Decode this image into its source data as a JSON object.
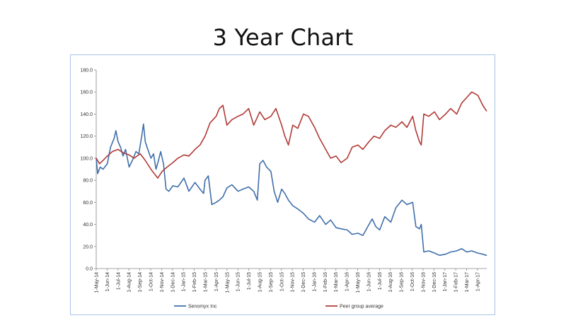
{
  "slide": {
    "title": "3 Year Chart"
  },
  "colors": {
    "series_1": "#3f6faa",
    "series_2": "#b03a36",
    "axis": "#888888",
    "frame": "#a9c4e6"
  },
  "chart_data": {
    "type": "line",
    "title": "",
    "xlabel": "",
    "ylabel": "",
    "ylim": [
      0,
      180
    ],
    "y_ticks": [
      "0.0",
      "20.0",
      "40.0",
      "60.0",
      "80.0",
      "100.0",
      "120.0",
      "140.0",
      "160.0",
      "180.0"
    ],
    "x_tick_labels": [
      "1-May-14",
      "1-Jun-14",
      "1-Jul-14",
      "1-Aug-14",
      "1-Sep-14",
      "1-Oct-14",
      "1-Nov-14",
      "1-Dec-14",
      "1-Jan-15",
      "1-Feb-15",
      "1-Mar-15",
      "1-Apr-15",
      "1-May-15",
      "1-Jun-15",
      "1-Jul-15",
      "1-Aug-15",
      "1-Sep-15",
      "1-Oct-15",
      "1-Nov-15",
      "1-Dec-15",
      "1-Jan-16",
      "1-Feb-16",
      "1-Mar-16",
      "1-Apr-16",
      "1-May-16",
      "1-Jun-16",
      "1-Jul-16",
      "1-Aug-16",
      "1-Sep-16",
      "1-Oct-16",
      "1-Nov-16",
      "1-Dec-16",
      "1-Jan-17",
      "1-Feb-17",
      "1-Mar-17",
      "1-Apr-17"
    ],
    "grid": false,
    "legend": "bottom",
    "series": [
      {
        "name": "Senomyx Inc",
        "color": "#3f6faa",
        "x": [
          "2014-05-01",
          "2014-05-05",
          "2014-05-12",
          "2014-05-20",
          "2014-06-01",
          "2014-06-10",
          "2014-06-20",
          "2014-06-25",
          "2014-07-01",
          "2014-07-08",
          "2014-07-15",
          "2014-07-22",
          "2014-08-01",
          "2014-08-10",
          "2014-08-20",
          "2014-08-28",
          "2014-09-05",
          "2014-09-10",
          "2014-09-15",
          "2014-09-22",
          "2014-10-01",
          "2014-10-08",
          "2014-10-15",
          "2014-10-22",
          "2014-10-28",
          "2014-11-05",
          "2014-11-12",
          "2014-11-20",
          "2014-12-01",
          "2014-12-15",
          "2015-01-01",
          "2015-01-15",
          "2015-02-01",
          "2015-02-15",
          "2015-02-25",
          "2015-03-01",
          "2015-03-10",
          "2015-03-20",
          "2015-04-01",
          "2015-04-10",
          "2015-04-20",
          "2015-05-01",
          "2015-05-15",
          "2015-06-01",
          "2015-06-15",
          "2015-07-01",
          "2015-07-15",
          "2015-07-25",
          "2015-08-01",
          "2015-08-10",
          "2015-08-20",
          "2015-09-01",
          "2015-09-10",
          "2015-09-20",
          "2015-10-01",
          "2015-10-10",
          "2015-10-20",
          "2015-11-01",
          "2015-11-15",
          "2015-12-01",
          "2015-12-15",
          "2016-01-01",
          "2016-01-15",
          "2016-02-01",
          "2016-02-15",
          "2016-03-01",
          "2016-03-15",
          "2016-04-01",
          "2016-04-15",
          "2016-05-01",
          "2016-05-15",
          "2016-06-01",
          "2016-06-10",
          "2016-06-20",
          "2016-07-01",
          "2016-07-15",
          "2016-08-01",
          "2016-08-15",
          "2016-09-01",
          "2016-09-15",
          "2016-10-01",
          "2016-10-10",
          "2016-10-20",
          "2016-10-25",
          "2016-11-01",
          "2016-11-15",
          "2016-12-01",
          "2016-12-15",
          "2017-01-01",
          "2017-01-15",
          "2017-02-01",
          "2017-02-15",
          "2017-03-01",
          "2017-03-15",
          "2017-04-01",
          "2017-04-15",
          "2017-04-25"
        ],
        "y": [
          100,
          86,
          92,
          90,
          95,
          110,
          118,
          125,
          115,
          110,
          102,
          108,
          92,
          98,
          106,
          104,
          120,
          131,
          115,
          108,
          100,
          104,
          90,
          98,
          106,
          95,
          72,
          70,
          75,
          74,
          82,
          70,
          78,
          72,
          68,
          80,
          84,
          58,
          60,
          62,
          65,
          73,
          76,
          70,
          72,
          74,
          70,
          62,
          95,
          98,
          92,
          88,
          70,
          60,
          72,
          68,
          62,
          57,
          54,
          50,
          45,
          42,
          48,
          40,
          44,
          37,
          36,
          35,
          31,
          32,
          30,
          40,
          45,
          38,
          35,
          47,
          42,
          55,
          62,
          58,
          60,
          38,
          36,
          40,
          15,
          16,
          14,
          12,
          13,
          15,
          16,
          18,
          15,
          16,
          14,
          13,
          12
        ]
      },
      {
        "name": "Peer group average",
        "color": "#b03a36",
        "x": [
          "2014-05-01",
          "2014-05-10",
          "2014-05-20",
          "2014-06-01",
          "2014-06-15",
          "2014-07-01",
          "2014-07-15",
          "2014-08-01",
          "2014-08-15",
          "2014-09-01",
          "2014-09-15",
          "2014-10-01",
          "2014-10-10",
          "2014-10-20",
          "2014-11-01",
          "2014-11-15",
          "2014-12-01",
          "2014-12-15",
          "2015-01-01",
          "2015-01-15",
          "2015-02-01",
          "2015-02-15",
          "2015-03-01",
          "2015-03-15",
          "2015-04-01",
          "2015-04-10",
          "2015-04-20",
          "2015-05-01",
          "2015-05-15",
          "2015-06-01",
          "2015-06-15",
          "2015-07-01",
          "2015-07-15",
          "2015-08-01",
          "2015-08-15",
          "2015-09-01",
          "2015-09-15",
          "2015-10-01",
          "2015-10-10",
          "2015-10-20",
          "2015-11-01",
          "2015-11-15",
          "2015-12-01",
          "2015-12-15",
          "2016-01-01",
          "2016-01-15",
          "2016-02-01",
          "2016-02-15",
          "2016-03-01",
          "2016-03-15",
          "2016-04-01",
          "2016-04-15",
          "2016-05-01",
          "2016-05-15",
          "2016-06-01",
          "2016-06-15",
          "2016-07-01",
          "2016-07-15",
          "2016-08-01",
          "2016-08-15",
          "2016-09-01",
          "2016-09-15",
          "2016-10-01",
          "2016-10-10",
          "2016-10-20",
          "2016-10-25",
          "2016-11-01",
          "2016-11-15",
          "2016-12-01",
          "2016-12-15",
          "2017-01-01",
          "2017-01-15",
          "2017-02-01",
          "2017-02-15",
          "2017-03-01",
          "2017-03-15",
          "2017-04-01",
          "2017-04-15",
          "2017-04-25"
        ],
        "y": [
          100,
          95,
          98,
          102,
          106,
          108,
          105,
          103,
          100,
          104,
          98,
          90,
          86,
          82,
          88,
          92,
          96,
          100,
          103,
          102,
          108,
          112,
          120,
          132,
          138,
          145,
          148,
          130,
          135,
          138,
          140,
          145,
          130,
          142,
          135,
          138,
          145,
          130,
          120,
          112,
          130,
          127,
          140,
          138,
          128,
          118,
          108,
          100,
          102,
          96,
          100,
          110,
          112,
          108,
          115,
          120,
          118,
          125,
          130,
          128,
          133,
          128,
          138,
          125,
          115,
          112,
          140,
          138,
          142,
          135,
          140,
          145,
          140,
          150,
          155,
          160,
          157,
          148,
          143
        ]
      }
    ]
  }
}
